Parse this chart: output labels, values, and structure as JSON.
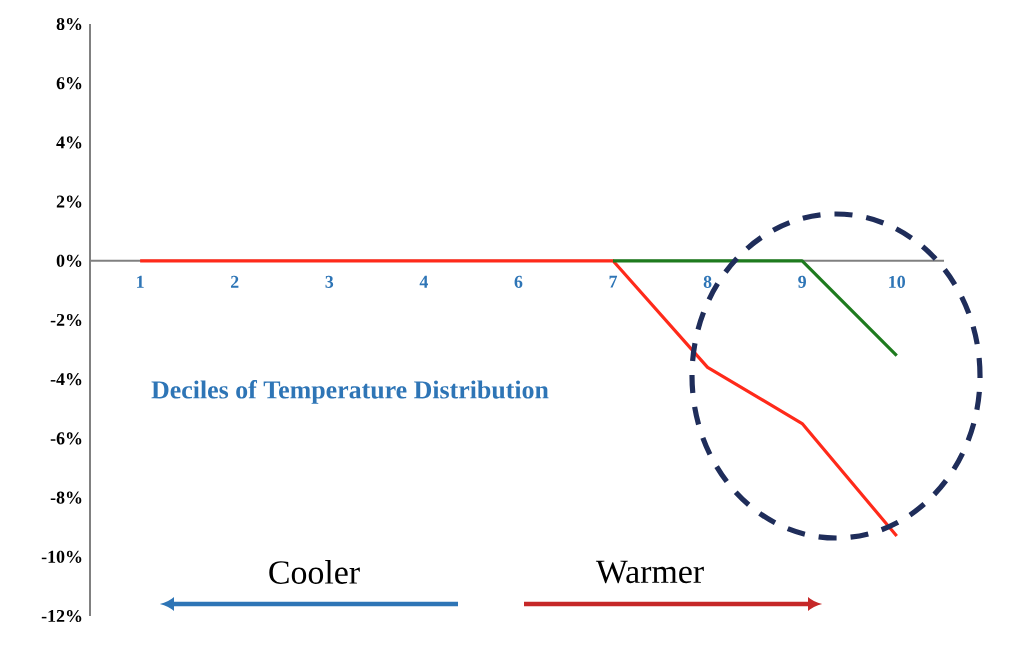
{
  "chart_data": {
    "type": "line",
    "xlabel": "Deciles of Temperature Distribution",
    "categories": [
      "1",
      "2",
      "3",
      "4",
      "6",
      "7",
      "8",
      "9",
      "10"
    ],
    "series": [
      {
        "color": "#ff2a1a",
        "values": [
          0,
          0,
          0,
          0,
          0,
          0,
          -3.6,
          -5.5,
          -9.3
        ]
      },
      {
        "color": "#1e7b1e",
        "values": [
          null,
          null,
          null,
          null,
          null,
          0,
          0,
          0,
          -3.2
        ]
      }
    ],
    "ylim": [
      -12,
      8
    ],
    "yticks": [
      {
        "value": 8,
        "label": "8%"
      },
      {
        "value": 6,
        "label": "6%"
      },
      {
        "value": 4,
        "label": "4%"
      },
      {
        "value": 2,
        "label": "2%"
      },
      {
        "value": 0,
        "label": "0%"
      },
      {
        "value": -2,
        "label": "-2%"
      },
      {
        "value": -4,
        "label": "-4%"
      },
      {
        "value": -6,
        "label": "-6%"
      },
      {
        "value": -8,
        "label": "-8%"
      },
      {
        "value": -10,
        "label": "-10%"
      },
      {
        "value": -12,
        "label": "-12%"
      }
    ],
    "annotations": [
      "Cooler",
      "Warmer"
    ]
  }
}
